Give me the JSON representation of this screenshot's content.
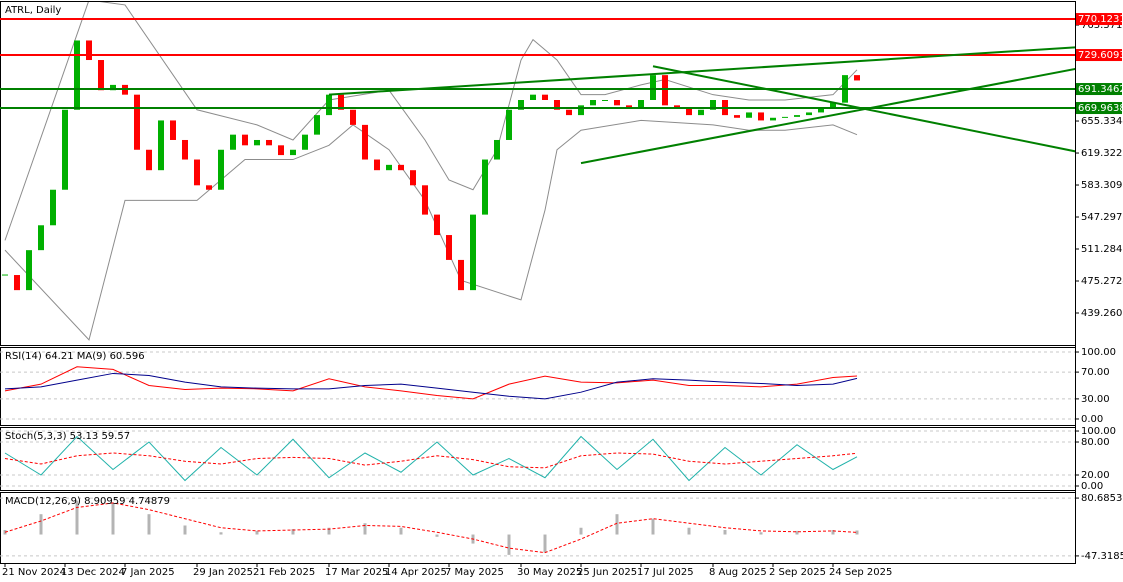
{
  "chart_data": {
    "type": "candlestick",
    "title": "ATRL, Daily",
    "categories": [
      "21 Nov 2024",
      null,
      null,
      null,
      null,
      "13 Dec 2024",
      null,
      null,
      null,
      null,
      "7 Jan 2025",
      null,
      null,
      null,
      null,
      null,
      "29 Jan 2025",
      null,
      null,
      null,
      null,
      "21 Feb 2025",
      null,
      null,
      null,
      null,
      null,
      "17 Mar 2025",
      null,
      null,
      null,
      null,
      "14 Apr 2025",
      null,
      null,
      null,
      null,
      "7 May 2025",
      null,
      null,
      null,
      null,
      null,
      "30 May 2025",
      null,
      null,
      null,
      null,
      "25 Jun 2025",
      null,
      null,
      null,
      null,
      "17 Jul 2025",
      null,
      null,
      null,
      null,
      null,
      "8 Aug 2025",
      null,
      null,
      null,
      null,
      "2 Sep 2025",
      null,
      null,
      null,
      null,
      "24 Sep 2025",
      null,
      null
    ],
    "series": [
      {
        "color_up": "#00b000",
        "color_down": "#ff0000",
        "values": [
          482,
          465,
          510,
          538,
          578,
          668,
          746,
          724,
          690,
          696,
          685,
          623,
          600,
          656,
          634,
          612,
          583,
          578,
          623,
          640,
          628,
          634,
          628,
          617,
          623,
          640,
          662,
          685,
          668,
          651,
          612,
          600,
          606,
          600,
          583,
          550,
          527,
          499,
          465,
          550,
          612,
          634,
          668,
          679,
          685,
          679,
          668,
          662,
          673,
          679,
          679,
          673,
          670,
          679,
          707,
          673,
          670,
          662,
          668,
          679,
          662,
          659,
          665,
          656,
          659,
          660,
          662,
          665,
          670,
          676,
          707,
          701
        ]
      }
    ],
    "bands": {
      "color": "#8c8c8c",
      "upper": {
        "x": [
          0,
          7,
          10,
          16,
          21,
          24,
          27,
          32,
          35,
          37,
          39,
          41,
          43,
          44,
          46,
          48,
          50,
          53,
          55,
          59,
          62,
          65,
          69,
          71
        ],
        "values": [
          521,
          791.5,
          786,
          668,
          651,
          634,
          679,
          690,
          634,
          589,
          578,
          623,
          724,
          747,
          724,
          685,
          685,
          696,
          702,
          685,
          679,
          679,
          685,
          713
        ]
      },
      "lower": {
        "x": [
          0,
          7,
          10,
          16,
          20,
          24,
          27,
          29,
          32,
          35,
          38,
          43,
          45,
          46,
          48,
          53,
          59,
          62,
          65,
          69,
          71
        ],
        "values": [
          510,
          409,
          566,
          566,
          612,
          612,
          628,
          651,
          623,
          566,
          476,
          454,
          555,
          623,
          645,
          656,
          651,
          645,
          645,
          651,
          640
        ]
      }
    },
    "levels": [
      {
        "value": 770.1231,
        "color": "#ff0000"
      },
      {
        "value": 729.6093,
        "color": "#ff0000"
      },
      {
        "value": 691.3462,
        "color": "#008000"
      },
      {
        "value": 669.9638,
        "color": "#008000"
      }
    ],
    "trendlines": [
      {
        "color": "#008000",
        "points": [
          [
            27,
            685
          ],
          [
            90,
            739
          ]
        ]
      },
      {
        "color": "#008000",
        "points": [
          [
            48,
            608
          ],
          [
            90,
            716
          ]
        ]
      },
      {
        "color": "#008000",
        "points": [
          [
            54,
            717
          ],
          [
            90,
            619
          ]
        ]
      }
    ],
    "ylim": [
      405.5,
      789.3
    ],
    "yticks": [
      763.3716,
      655.3344,
      {
        "value": 619.322,
        "label": "619.3220"
      },
      583.3096,
      547.2972,
      511.2848,
      475.2724,
      {
        "value": 439.26,
        "label": "439.2600"
      }
    ],
    "indicators": [
      {
        "type": "line",
        "title": "RSI(14) 64.21 MA(9) 60.596",
        "x": [
          0,
          3,
          6,
          9,
          12,
          15,
          18,
          21,
          24,
          27,
          30,
          33,
          36,
          39,
          42,
          45,
          48,
          51,
          54,
          57,
          60,
          63,
          66,
          69,
          71
        ],
        "series": [
          {
            "color": "#ff0000",
            "values": [
              42,
              52,
              78,
              74,
              50,
              44,
              46,
              45,
              42,
              60,
              48,
              42,
              35,
              30,
              52,
              64,
              55,
              54,
              58,
              50,
              50,
              48,
              52,
              62,
              64.21
            ]
          },
          {
            "color": "#00008b",
            "values": [
              45,
              48,
              58,
              68,
              65,
              55,
              48,
              46,
              45,
              45,
              50,
              52,
              46,
              40,
              34,
              30,
              40,
              55,
              60,
              58,
              55,
              53,
              50,
              52,
              60.596
            ]
          }
        ],
        "ylim": [
          -9,
          106
        ],
        "yticks": [
          {
            "value": 100,
            "label": "100.00"
          },
          {
            "value": 70,
            "label": "70.00"
          },
          {
            "value": 30,
            "label": "30.00"
          },
          {
            "value": 0,
            "label": "0.00"
          }
        ]
      },
      {
        "type": "line",
        "title": "Stoch(5,3,3) 53.13 59.57",
        "x": [
          0,
          3,
          6,
          9,
          12,
          15,
          18,
          21,
          24,
          27,
          30,
          33,
          36,
          39,
          42,
          45,
          48,
          51,
          54,
          57,
          60,
          63,
          66,
          69,
          71
        ],
        "series": [
          {
            "color": "#20b2aa",
            "values": [
              60,
              20,
              90,
              30,
              80,
              10,
              70,
              20,
              85,
              15,
              60,
              25,
              80,
              20,
              50,
              15,
              90,
              30,
              85,
              10,
              70,
              20,
              75,
              30,
              53.13
            ]
          },
          {
            "color": "#ff0000",
            "dashed": true,
            "values": [
              50,
              40,
              55,
              60,
              55,
              45,
              40,
              50,
              52,
              50,
              38,
              45,
              55,
              48,
              35,
              33,
              55,
              60,
              58,
              45,
              40,
              45,
              50,
              55,
              59.57
            ]
          }
        ],
        "ylim": [
          -7.3,
          105.5
        ],
        "yticks": [
          {
            "value": 100,
            "label": "100.00"
          },
          {
            "value": 80,
            "label": "80.00"
          },
          {
            "value": 20,
            "label": "20.00"
          },
          {
            "value": 0,
            "label": "0.00"
          }
        ]
      },
      {
        "type": "histogram",
        "title": "MACD(12,26,9) 8.90959 4.74879",
        "x": [
          0,
          3,
          6,
          9,
          12,
          15,
          18,
          21,
          24,
          27,
          30,
          33,
          36,
          39,
          42,
          45,
          48,
          51,
          54,
          57,
          60,
          63,
          66,
          69,
          71
        ],
        "series": [
          {
            "color": "#b4b4b4",
            "values": [
              10,
              45,
              75,
              70,
              45,
              20,
              5,
              8,
              12,
              15,
              25,
              15,
              -5,
              -20,
              -45,
              -40,
              15,
              45,
              35,
              15,
              10,
              5,
              8,
              10,
              8.90959
            ]
          },
          {
            "color": "#ff0000",
            "dashed": true,
            "values": [
              5,
              30,
              60,
              70,
              55,
              35,
              15,
              8,
              10,
              12,
              20,
              18,
              5,
              -10,
              -30,
              -40,
              -10,
              25,
              35,
              25,
              15,
              8,
              6,
              8,
              4.74879
            ]
          }
        ],
        "ylim": [
          -63,
          91.9
        ],
        "yticks": [
          80.68539,
          -47.31854
        ]
      }
    ]
  }
}
